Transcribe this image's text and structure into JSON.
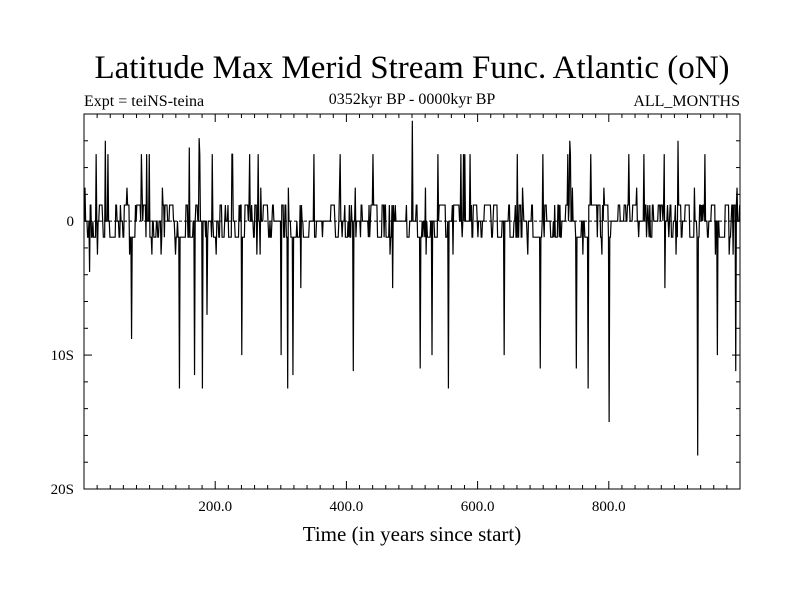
{
  "chart_data": {
    "type": "line",
    "title": "Latitude Max Merid Stream Func. Atlantic (oN)",
    "subtitle_left": "Expt = teiNS-teina",
    "subtitle_center": "0352kyr BP - 0000kyr BP",
    "subtitle_right": "ALL_MONTHS",
    "xlabel": "Time (in years since start)",
    "ylabel": "",
    "xlim": [
      0,
      1000
    ],
    "ylim": [
      -20,
      8
    ],
    "x_ticks": [
      {
        "value": 200,
        "label": "200.0"
      },
      {
        "value": 400,
        "label": "400.0"
      },
      {
        "value": 600,
        "label": "600.0"
      },
      {
        "value": 800,
        "label": "800.0"
      }
    ],
    "y_ticks": [
      {
        "value": 0,
        "label": "0"
      },
      {
        "value": -10,
        "label": "10S"
      },
      {
        "value": -20,
        "label": "20S"
      }
    ],
    "zero_line": true,
    "grid": false,
    "series": [
      {
        "name": "",
        "step_levels": [
          5,
          2.5,
          1.2,
          0,
          -1.2,
          -2.5
        ],
        "baseline_levels": [
          1.2,
          0,
          -1.2
        ],
        "seed": 7,
        "n_points": 1000,
        "spikes": [
          {
            "x": 8,
            "y": -3.8
          },
          {
            "x": 18,
            "y": 5
          },
          {
            "x": 32,
            "y": 6
          },
          {
            "x": 72,
            "y": -8.8
          },
          {
            "x": 95,
            "y": 5
          },
          {
            "x": 145,
            "y": -12.5
          },
          {
            "x": 160,
            "y": 5.5
          },
          {
            "x": 168,
            "y": -11.5
          },
          {
            "x": 175,
            "y": 6.2
          },
          {
            "x": 180,
            "y": -12.5
          },
          {
            "x": 187,
            "y": -7
          },
          {
            "x": 195,
            "y": 5
          },
          {
            "x": 225,
            "y": 5
          },
          {
            "x": 240,
            "y": -10
          },
          {
            "x": 265,
            "y": 5
          },
          {
            "x": 300,
            "y": -10
          },
          {
            "x": 310,
            "y": -12.5
          },
          {
            "x": 318,
            "y": -11.5
          },
          {
            "x": 330,
            "y": -5
          },
          {
            "x": 350,
            "y": 5
          },
          {
            "x": 410,
            "y": -11.2
          },
          {
            "x": 440,
            "y": 5
          },
          {
            "x": 470,
            "y": -5
          },
          {
            "x": 500,
            "y": 7.5
          },
          {
            "x": 512,
            "y": -11
          },
          {
            "x": 530,
            "y": -10
          },
          {
            "x": 555,
            "y": -12.5
          },
          {
            "x": 580,
            "y": 5
          },
          {
            "x": 640,
            "y": -10
          },
          {
            "x": 660,
            "y": 5
          },
          {
            "x": 695,
            "y": -11
          },
          {
            "x": 740,
            "y": 6
          },
          {
            "x": 750,
            "y": -11
          },
          {
            "x": 768,
            "y": -12.5
          },
          {
            "x": 800,
            "y": -15
          },
          {
            "x": 830,
            "y": 5
          },
          {
            "x": 885,
            "y": -5
          },
          {
            "x": 905,
            "y": 6
          },
          {
            "x": 935,
            "y": -17.5
          },
          {
            "x": 965,
            "y": -10
          },
          {
            "x": 993,
            "y": -11.2
          }
        ]
      }
    ]
  },
  "colors": {
    "background": "#ffffff",
    "ink": "#000000"
  }
}
